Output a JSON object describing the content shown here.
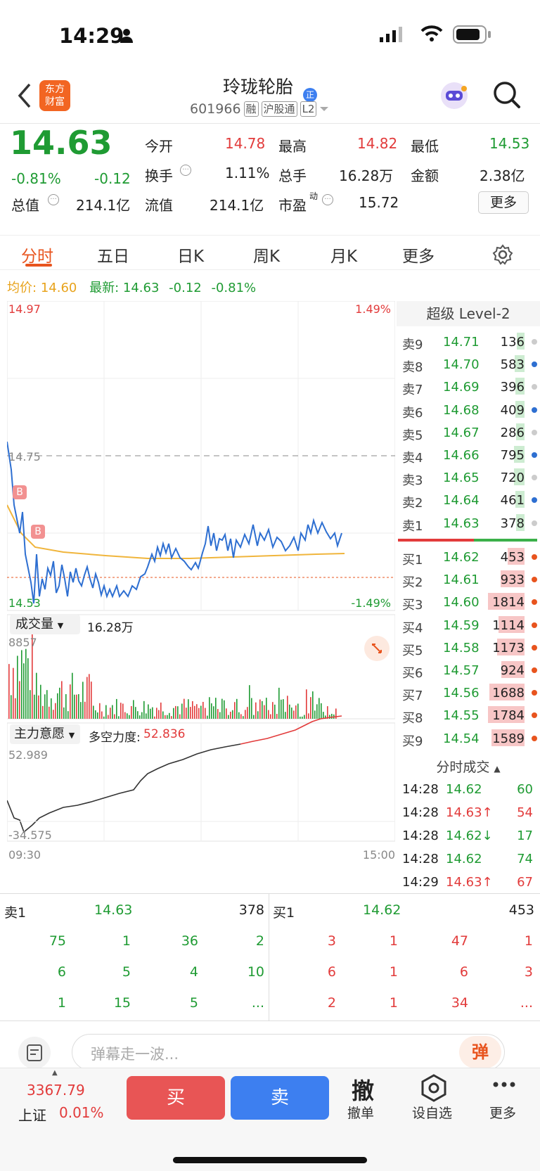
{
  "status_bar": {
    "time": "14:29"
  },
  "header": {
    "stock_name": "玲珑轮胎",
    "stock_code": "601966",
    "tags": [
      "融",
      "沪股通",
      "L2"
    ],
    "logo_text": "东方\n财富"
  },
  "quote": {
    "price": "14.63",
    "pct": "-0.81%",
    "change": "-0.12",
    "fields": [
      {
        "label": "今开",
        "value": "14.78",
        "color": "red"
      },
      {
        "label": "最高",
        "value": "14.82",
        "color": "red"
      },
      {
        "label": "最低",
        "value": "14.53",
        "color": "green"
      },
      {
        "label": "换手",
        "value": "1.11%",
        "color": "normal"
      },
      {
        "label": "总手",
        "value": "16.28万",
        "color": "normal"
      },
      {
        "label": "金额",
        "value": "2.38亿",
        "color": "normal"
      },
      {
        "label": "总值",
        "value": "214.1亿",
        "color": "normal"
      },
      {
        "label": "流值",
        "value": "214.1亿",
        "color": "normal"
      },
      {
        "label": "市盈",
        "value": "15.72",
        "color": "normal"
      }
    ],
    "pe_superscript": "动",
    "more_label": "更多"
  },
  "tabs": [
    "分时",
    "五日",
    "日K",
    "周K",
    "月K",
    "更多"
  ],
  "info_line": {
    "avg_label": "均价:",
    "avg_value": "14.60",
    "latest_label": "最新:",
    "latest_value": "14.63",
    "chg": "-0.12",
    "pct": "-0.81%"
  },
  "chart": {
    "y_top": "14.97",
    "y_mid": "14.75",
    "y_bottom": "14.53",
    "pct_top": "1.49%",
    "pct_bottom": "-1.49%",
    "volume_label": "成交量",
    "volume_value": "16.28万",
    "volume_max": "8857",
    "indicator_label": "主力意愿",
    "indicator_name": "多空力度:",
    "indicator_value": "52.836",
    "ind_top": "52.989",
    "ind_bottom": "-34.575",
    "time_start": "09:30",
    "time_end": "15:00",
    "markers": [
      "B",
      "B"
    ]
  },
  "level2": {
    "title": "超级 Level-2",
    "asks": [
      {
        "label": "卖9",
        "price": "14.71",
        "vol": "136"
      },
      {
        "label": "卖8",
        "price": "14.70",
        "vol": "583"
      },
      {
        "label": "卖7",
        "price": "14.69",
        "vol": "396"
      },
      {
        "label": "卖6",
        "price": "14.68",
        "vol": "409"
      },
      {
        "label": "卖5",
        "price": "14.67",
        "vol": "286"
      },
      {
        "label": "卖4",
        "price": "14.66",
        "vol": "795"
      },
      {
        "label": "卖3",
        "price": "14.65",
        "vol": "720"
      },
      {
        "label": "卖2",
        "price": "14.64",
        "vol": "461"
      },
      {
        "label": "卖1",
        "price": "14.63",
        "vol": "378"
      }
    ],
    "bids": [
      {
        "label": "买1",
        "price": "14.62",
        "vol": "453"
      },
      {
        "label": "买2",
        "price": "14.61",
        "vol": "933"
      },
      {
        "label": "买3",
        "price": "14.60",
        "vol": "1814"
      },
      {
        "label": "买4",
        "price": "14.59",
        "vol": "1114"
      },
      {
        "label": "买5",
        "price": "14.58",
        "vol": "1173"
      },
      {
        "label": "买6",
        "price": "14.57",
        "vol": "924"
      },
      {
        "label": "买7",
        "price": "14.56",
        "vol": "1688"
      },
      {
        "label": "买8",
        "price": "14.55",
        "vol": "1784"
      },
      {
        "label": "买9",
        "price": "14.54",
        "vol": "1589"
      }
    ]
  },
  "ticks": {
    "title": "分时成交",
    "rows": [
      {
        "time": "14:28",
        "price": "14.62",
        "arrow": "",
        "vol": "60",
        "vcolor": "green"
      },
      {
        "time": "14:28",
        "price": "14.63↑",
        "arrow": "up",
        "vol": "54",
        "vcolor": "red"
      },
      {
        "time": "14:28",
        "price": "14.62↓",
        "arrow": "down",
        "vol": "17",
        "vcolor": "green"
      },
      {
        "time": "14:28",
        "price": "14.62",
        "arrow": "",
        "vol": "74",
        "vcolor": "green"
      },
      {
        "time": "14:29",
        "price": "14.63↑",
        "arrow": "up",
        "vol": "67",
        "vcolor": "red"
      }
    ]
  },
  "queue": {
    "sell_label": "卖1",
    "sell_price": "14.63",
    "sell_total": "378",
    "buy_label": "买1",
    "buy_price": "14.62",
    "buy_total": "453",
    "sell_rows": [
      [
        "75",
        "1",
        "36",
        "2"
      ],
      [
        "6",
        "5",
        "4",
        "10"
      ],
      [
        "1",
        "15",
        "5",
        "..."
      ]
    ],
    "buy_rows": [
      [
        "3",
        "1",
        "47",
        "1"
      ],
      [
        "6",
        "1",
        "6",
        "3"
      ],
      [
        "2",
        "1",
        "34",
        "..."
      ]
    ]
  },
  "danmu": {
    "placeholder": "弹幕走一波...",
    "button": "弹"
  },
  "bottom_nav": {
    "index_value": "3367.79",
    "index_name": "上证",
    "index_pct": "0.01%",
    "buy": "买",
    "sell": "卖",
    "cancel_icon": "撤",
    "cancel": "撤单",
    "watch": "设自选",
    "more": "更多"
  }
}
